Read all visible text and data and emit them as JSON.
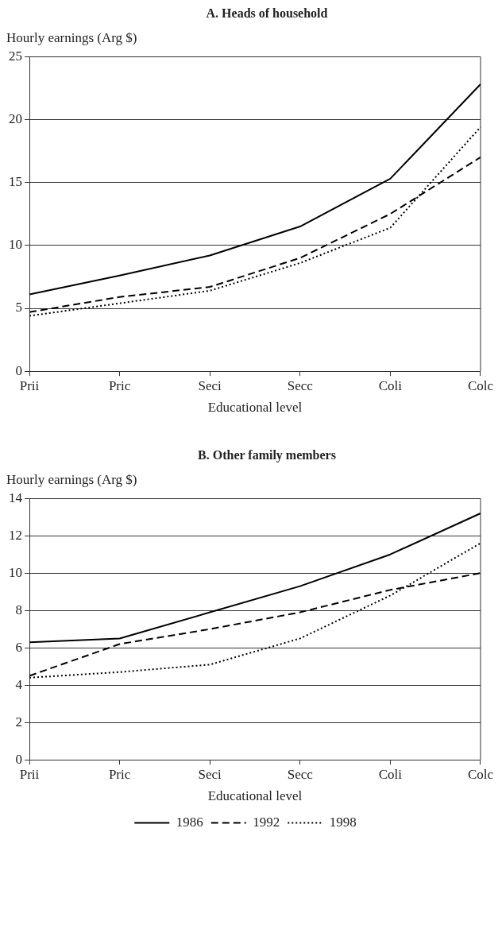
{
  "chart_data": [
    {
      "type": "line",
      "title": "A. Heads of household",
      "ylabel": "Hourly earnings (Arg $)",
      "xlabel": "Educational level",
      "categories": [
        "Prii",
        "Pric",
        "Seci",
        "Secc",
        "Coli",
        "Colc"
      ],
      "ylim": [
        0,
        25
      ],
      "yticks": [
        0,
        5,
        10,
        15,
        20,
        25
      ],
      "grid": "y",
      "legend": false,
      "marker": "none",
      "series": [
        {
          "color": "#000000",
          "line_style": "solid",
          "values": [
            6.1,
            7.6,
            9.2,
            11.5,
            15.3,
            22.8
          ]
        },
        {
          "color": "#000000",
          "line_style": "dashed",
          "values": [
            4.7,
            5.9,
            6.7,
            9.0,
            12.5,
            17.0
          ]
        },
        {
          "color": "#000000",
          "line_style": "dotted",
          "values": [
            4.4,
            5.4,
            6.4,
            8.6,
            11.4,
            19.4
          ]
        }
      ]
    },
    {
      "type": "line",
      "title": "B. Other family members",
      "ylabel": "Hourly earnings (Arg $)",
      "xlabel": "Educational level",
      "categories": [
        "Prii",
        "Pric",
        "Seci",
        "Secc",
        "Coli",
        "Colc"
      ],
      "ylim": [
        0,
        14
      ],
      "yticks": [
        0,
        2,
        4,
        6,
        8,
        10,
        12,
        14
      ],
      "grid": "y",
      "legend": "bottom",
      "marker": "none",
      "series": [
        {
          "name": "1986",
          "color": "#000000",
          "line_style": "solid",
          "values": [
            6.3,
            6.5,
            7.9,
            9.3,
            11.0,
            13.2
          ]
        },
        {
          "name": "1992",
          "color": "#000000",
          "line_style": "dashed",
          "values": [
            4.5,
            6.2,
            7.0,
            7.9,
            9.1,
            10.0
          ]
        },
        {
          "name": "1998",
          "color": "#000000",
          "line_style": "dotted",
          "values": [
            4.4,
            4.7,
            5.1,
            6.5,
            8.8,
            11.6
          ]
        }
      ]
    }
  ]
}
